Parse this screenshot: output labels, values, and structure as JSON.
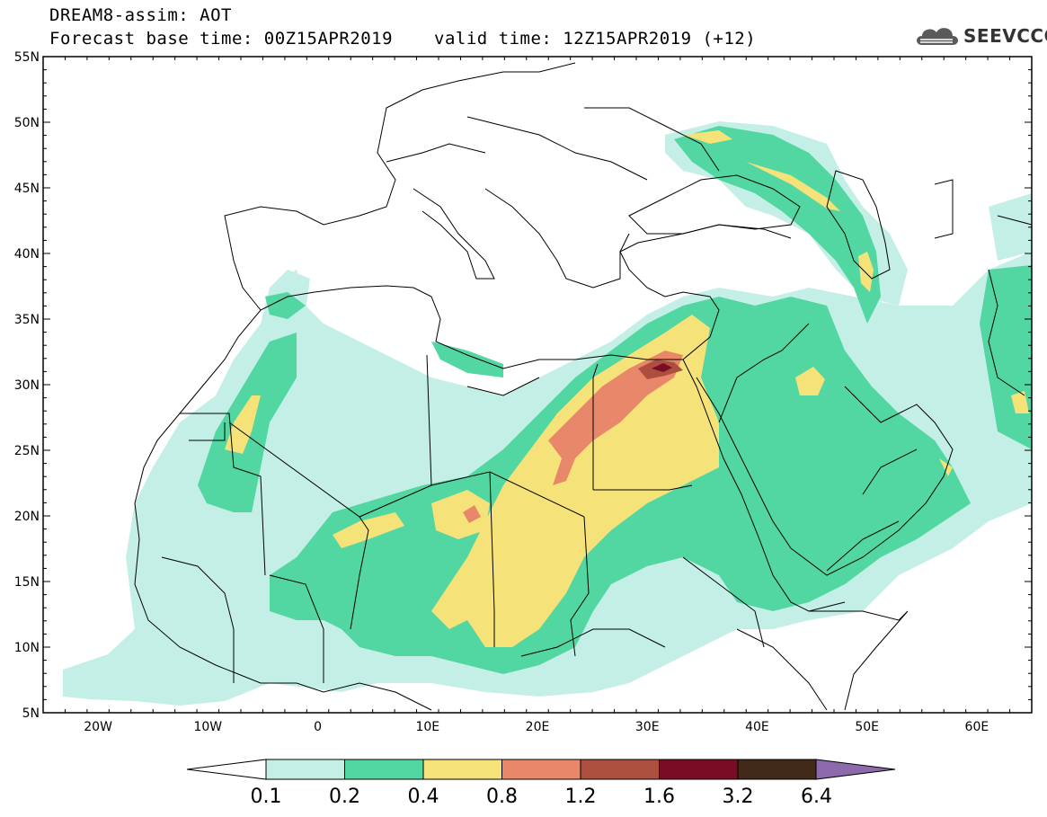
{
  "header": {
    "title": "DREAM8-assim: AOT",
    "base_time": "Forecast base time: 00Z15APR2019",
    "valid_time": "valid time: 12Z15APR2019 (+12)"
  },
  "logo": {
    "text": "SEEVCCC",
    "icon": "cloud-icon"
  },
  "map": {
    "lat_labels": [
      "55N",
      "50N",
      "45N",
      "40N",
      "35N",
      "30N",
      "25N",
      "20N",
      "15N",
      "10N",
      "5N"
    ],
    "lon_labels": [
      "20W",
      "10W",
      "0",
      "10E",
      "20E",
      "30E",
      "40E",
      "50E",
      "60E"
    ]
  },
  "colorbar": {
    "labels": [
      "0.1",
      "0.2",
      "0.4",
      "0.8",
      "1.2",
      "1.6",
      "3.2",
      "6.4"
    ],
    "colors": [
      "#ffffff",
      "#c4efe6",
      "#52d6a2",
      "#f5e37a",
      "#e8876a",
      "#ad4f3e",
      "#7b0c26",
      "#412a17",
      "#8c6aab"
    ]
  },
  "chart_data": {
    "type": "heatmap",
    "title": "DREAM8-assim: AOT",
    "subtitle": "Forecast base time: 00Z15APR2019 valid time: 12Z15APR2019 (+12)",
    "xlim": [
      -25,
      65
    ],
    "ylim": [
      5,
      55
    ],
    "levels": [
      0.1,
      0.2,
      0.4,
      0.8,
      1.2,
      1.6,
      3.2,
      6.4
    ]
  }
}
